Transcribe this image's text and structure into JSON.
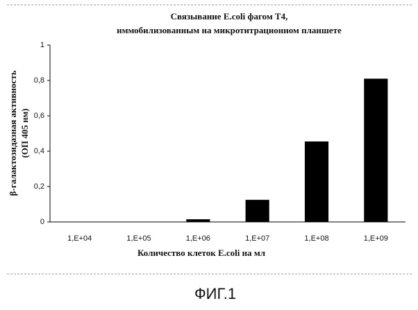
{
  "chart_data": {
    "type": "bar",
    "title": [
      "Связывание E.coli фагом T4,",
      "иммобилизованным на микротитрационном планшете"
    ],
    "y_label": [
      "β-галактозидазная активность",
      "(ОП 405 нм)"
    ],
    "x_label": "Количество клеток E.coli на мл",
    "categories": [
      "1,E+04",
      "1,E+05",
      "1,E+06",
      "1,E+07",
      "1,E+08",
      "1,E+09"
    ],
    "values": [
      0,
      0,
      0.015,
      0.125,
      0.455,
      0.81
    ],
    "color": "#000000",
    "ylim": [
      0,
      1
    ],
    "yticks": [
      0,
      {
        "value": 0.2,
        "label": "0,2"
      },
      {
        "value": 0.4,
        "label": "0,4"
      },
      {
        "value": 0.6,
        "label": "0,6"
      },
      {
        "value": 0.8,
        "label": "0,8"
      },
      1
    ],
    "grid": false
  },
  "caption": "ФИГ.1"
}
